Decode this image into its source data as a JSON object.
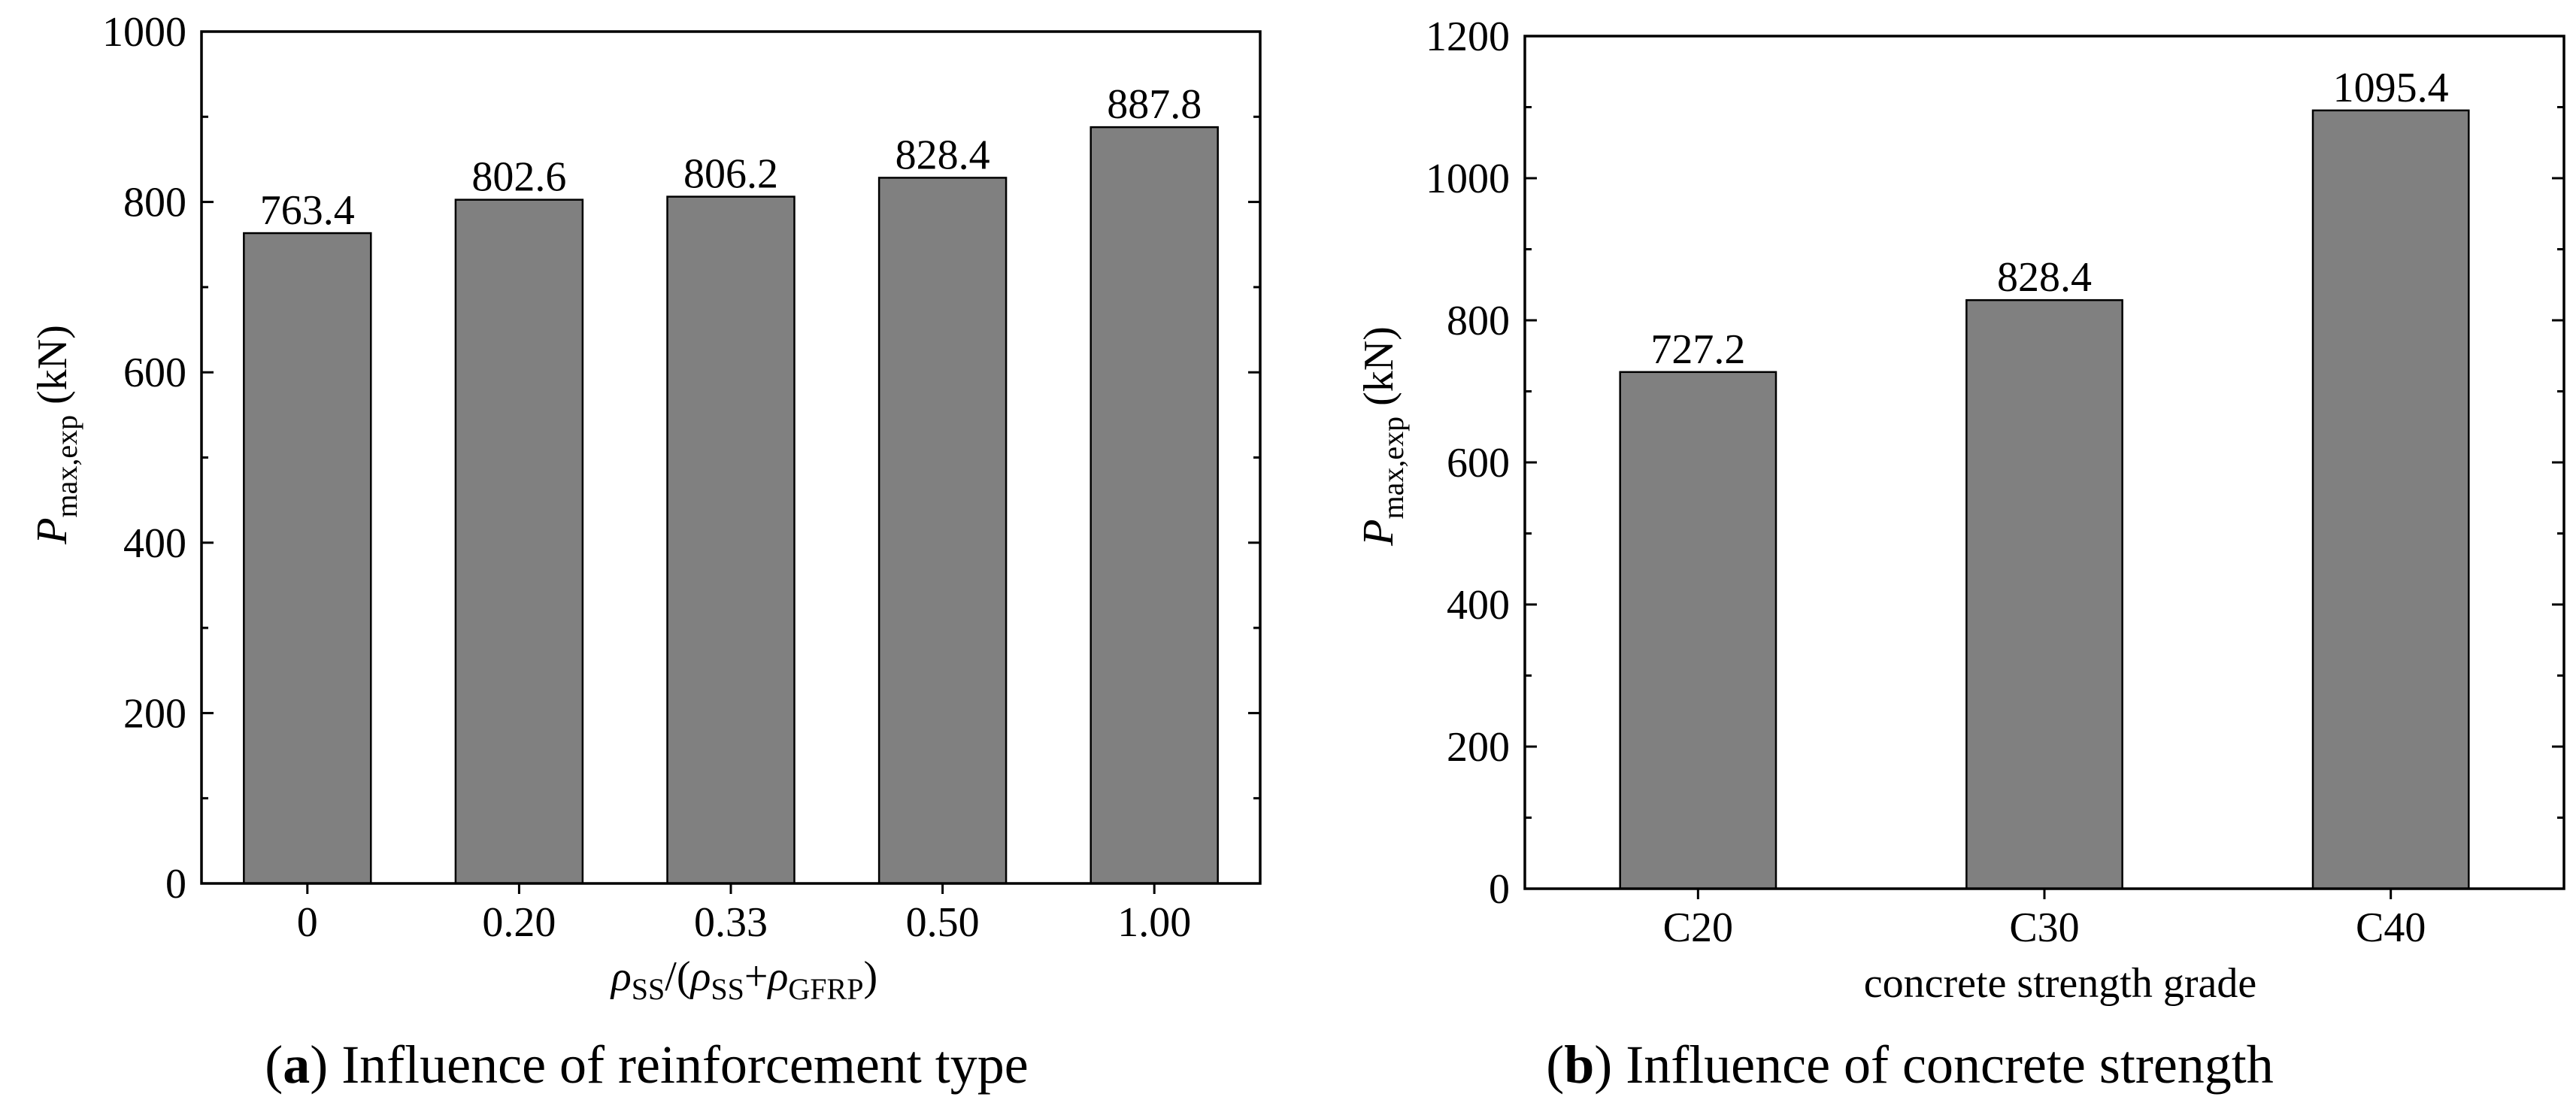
{
  "colors": {
    "bar": "#808080",
    "bar_stroke": "#000000",
    "axis": "#000000",
    "background": "#ffffff"
  },
  "chart_data": [
    {
      "type": "bar",
      "categories": [
        "0",
        "0.20",
        "0.33",
        "0.50",
        "1.00"
      ],
      "values": [
        763.4,
        802.6,
        806.2,
        828.4,
        887.8
      ],
      "data_labels": [
        "763.4",
        "802.6",
        "806.2",
        "828.4",
        "887.8"
      ],
      "ylim": [
        0,
        1000
      ],
      "yticks": [
        0,
        200,
        400,
        600,
        800,
        1000
      ],
      "ytick_labels": [
        "0",
        "200",
        "400",
        "600",
        "800",
        "1000"
      ],
      "ylabel": {
        "main": "P",
        "sub": "max,exp",
        "unit": " (kN)"
      },
      "xlabel": {
        "p1": "ρ",
        "s1": "SS",
        "p2": "/(",
        "p3": "ρ",
        "s2": "SS",
        "p4": "+",
        "p5": "ρ",
        "s3": "GFRP",
        "p6": ")"
      },
      "caption": {
        "letter": "a",
        "text": " Influence of reinforcement type"
      },
      "grid": false
    },
    {
      "type": "bar",
      "categories": [
        "C20",
        "C30",
        "C40"
      ],
      "values": [
        727.2,
        828.4,
        1095.4
      ],
      "data_labels": [
        "727.2",
        "828.4",
        "1095.4"
      ],
      "ylim": [
        0,
        1200
      ],
      "yticks": [
        0,
        200,
        400,
        600,
        800,
        1000,
        1200
      ],
      "ytick_labels": [
        "0",
        "200",
        "400",
        "600",
        "800",
        "1000",
        "1200"
      ],
      "ylabel": {
        "main": "P",
        "sub": "max,exp",
        "unit": " (kN)"
      },
      "xlabel": {
        "text": "concrete strength grade"
      },
      "caption": {
        "letter": "b",
        "text": " Influence of concrete strength"
      },
      "grid": false
    }
  ]
}
